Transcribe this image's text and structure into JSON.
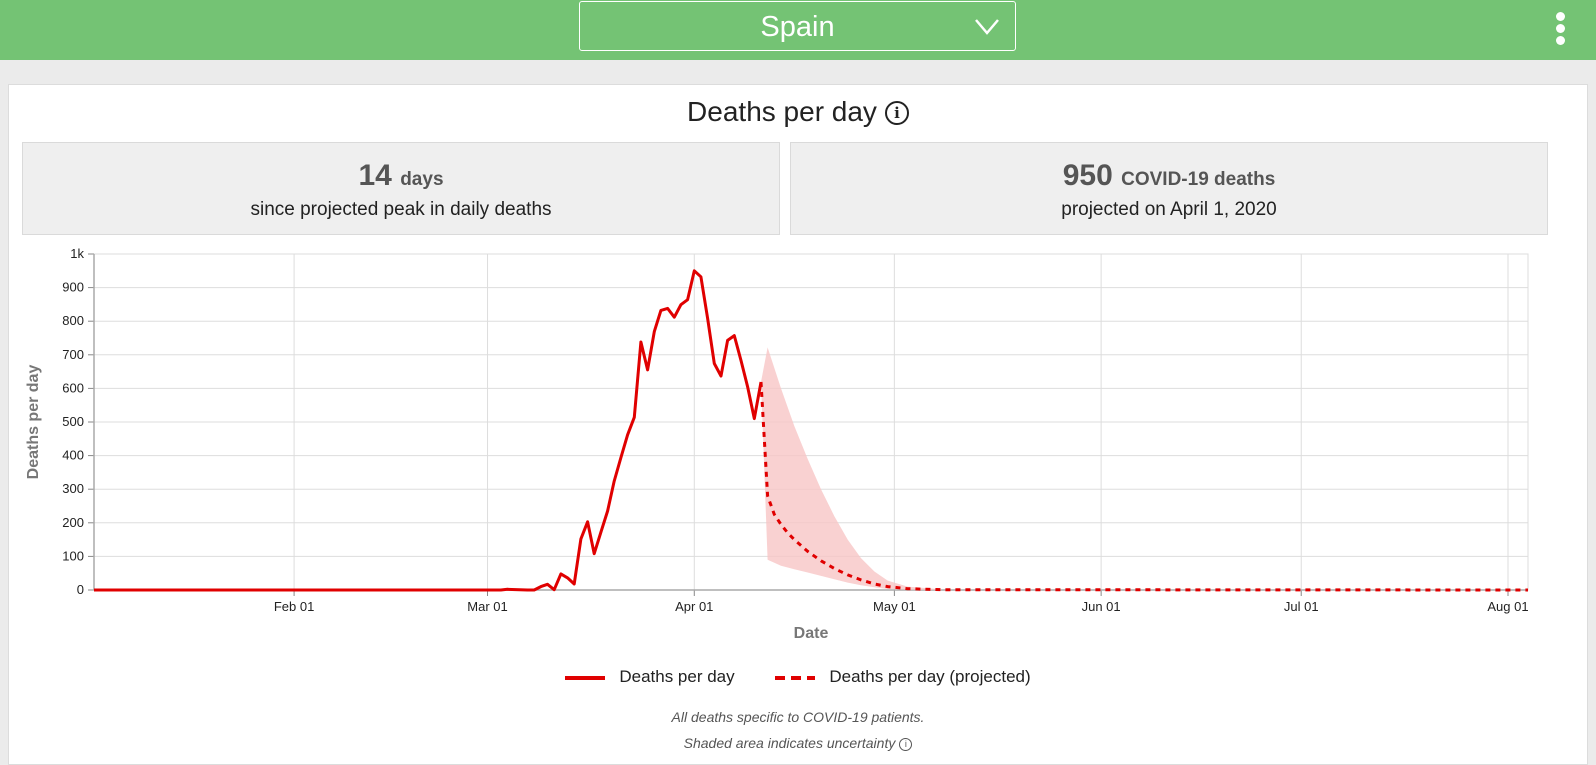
{
  "header": {
    "country": "Spain",
    "menu_icon": "kebab-menu-icon",
    "background": "#74c374"
  },
  "title": "Deaths per day",
  "stats": [
    {
      "value": "14",
      "unit": "days",
      "caption": "since projected peak in daily deaths"
    },
    {
      "value": "950",
      "unit": "COVID-19 deaths",
      "caption": "projected on April 1, 2020"
    }
  ],
  "notes": {
    "line1": "All deaths specific to COVID-19 patients.",
    "line2": "Shaded area indicates uncertainty"
  },
  "chart_data": {
    "type": "line",
    "title": "Deaths per day",
    "xlabel": "Date",
    "ylabel": "Deaths per day",
    "ylim": [
      0,
      1000
    ],
    "xlim": [
      "2020-01-02",
      "2020-08-04"
    ],
    "y_ticks": [
      0,
      100,
      200,
      300,
      400,
      500,
      600,
      700,
      800,
      900,
      1000
    ],
    "y_tick_labels": [
      "0",
      "100",
      "200",
      "300",
      "400",
      "500",
      "600",
      "700",
      "800",
      "900",
      "1k"
    ],
    "x_ticks": [
      {
        "date": "2020-02-01",
        "label": "Feb 01"
      },
      {
        "date": "2020-03-01",
        "label": "Mar 01"
      },
      {
        "date": "2020-04-01",
        "label": "Apr 01"
      },
      {
        "date": "2020-05-01",
        "label": "May 01"
      },
      {
        "date": "2020-06-01",
        "label": "Jun 01"
      },
      {
        "date": "2020-07-01",
        "label": "Jul 01"
      },
      {
        "date": "2020-08-01",
        "label": "Aug 01"
      }
    ],
    "grid": true,
    "legend_position": "bottom",
    "colors": {
      "line": "#e00000",
      "band": "#f7c6c6"
    },
    "series": [
      {
        "name": "Deaths per day",
        "style": "solid",
        "points": [
          {
            "x": "2020-01-02",
            "y": 0
          },
          {
            "x": "2020-03-03",
            "y": 0
          },
          {
            "x": "2020-03-04",
            "y": 2
          },
          {
            "x": "2020-03-07",
            "y": 0
          },
          {
            "x": "2020-03-08",
            "y": 0
          },
          {
            "x": "2020-03-09",
            "y": 10
          },
          {
            "x": "2020-03-10",
            "y": 17
          },
          {
            "x": "2020-03-11",
            "y": 1
          },
          {
            "x": "2020-03-12",
            "y": 48
          },
          {
            "x": "2020-03-13",
            "y": 36
          },
          {
            "x": "2020-03-14",
            "y": 18
          },
          {
            "x": "2020-03-15",
            "y": 152
          },
          {
            "x": "2020-03-16",
            "y": 203
          },
          {
            "x": "2020-03-17",
            "y": 108
          },
          {
            "x": "2020-03-18",
            "y": 172
          },
          {
            "x": "2020-03-19",
            "y": 235
          },
          {
            "x": "2020-03-20",
            "y": 324
          },
          {
            "x": "2020-03-21",
            "y": 394
          },
          {
            "x": "2020-03-22",
            "y": 462
          },
          {
            "x": "2020-03-23",
            "y": 514
          },
          {
            "x": "2020-03-24",
            "y": 738
          },
          {
            "x": "2020-03-25",
            "y": 655
          },
          {
            "x": "2020-03-26",
            "y": 769
          },
          {
            "x": "2020-03-27",
            "y": 832
          },
          {
            "x": "2020-03-28",
            "y": 838
          },
          {
            "x": "2020-03-29",
            "y": 812
          },
          {
            "x": "2020-03-30",
            "y": 849
          },
          {
            "x": "2020-03-31",
            "y": 864
          },
          {
            "x": "2020-04-01",
            "y": 950
          },
          {
            "x": "2020-04-02",
            "y": 932
          },
          {
            "x": "2020-04-03",
            "y": 809
          },
          {
            "x": "2020-04-04",
            "y": 674
          },
          {
            "x": "2020-04-05",
            "y": 637
          },
          {
            "x": "2020-04-06",
            "y": 743
          },
          {
            "x": "2020-04-07",
            "y": 757
          },
          {
            "x": "2020-04-08",
            "y": 683
          },
          {
            "x": "2020-04-09",
            "y": 605
          },
          {
            "x": "2020-04-10",
            "y": 510
          },
          {
            "x": "2020-04-11",
            "y": 619
          }
        ]
      },
      {
        "name": "Deaths per day (projected)",
        "style": "dashed",
        "points": [
          {
            "x": "2020-04-11",
            "y": 619
          },
          {
            "x": "2020-04-12",
            "y": 280
          },
          {
            "x": "2020-04-13",
            "y": 225
          },
          {
            "x": "2020-04-14",
            "y": 195
          },
          {
            "x": "2020-04-15",
            "y": 170
          },
          {
            "x": "2020-04-16",
            "y": 150
          },
          {
            "x": "2020-04-18",
            "y": 115
          },
          {
            "x": "2020-04-20",
            "y": 87
          },
          {
            "x": "2020-04-22",
            "y": 64
          },
          {
            "x": "2020-04-24",
            "y": 45
          },
          {
            "x": "2020-04-26",
            "y": 30
          },
          {
            "x": "2020-04-28",
            "y": 18
          },
          {
            "x": "2020-04-30",
            "y": 10
          },
          {
            "x": "2020-05-03",
            "y": 4
          },
          {
            "x": "2020-05-08",
            "y": 1
          },
          {
            "x": "2020-08-04",
            "y": 0
          }
        ]
      }
    ],
    "uncertainty_band": [
      {
        "x": "2020-04-11",
        "lower": 619,
        "upper": 619
      },
      {
        "x": "2020-04-12",
        "lower": 90,
        "upper": 722
      },
      {
        "x": "2020-04-14",
        "lower": 72,
        "upper": 600
      },
      {
        "x": "2020-04-16",
        "lower": 62,
        "upper": 488
      },
      {
        "x": "2020-04-18",
        "lower": 52,
        "upper": 390
      },
      {
        "x": "2020-04-20",
        "lower": 42,
        "upper": 300
      },
      {
        "x": "2020-04-22",
        "lower": 32,
        "upper": 220
      },
      {
        "x": "2020-04-24",
        "lower": 22,
        "upper": 150
      },
      {
        "x": "2020-04-26",
        "lower": 14,
        "upper": 95
      },
      {
        "x": "2020-04-28",
        "lower": 8,
        "upper": 55
      },
      {
        "x": "2020-04-30",
        "lower": 3,
        "upper": 28
      },
      {
        "x": "2020-05-03",
        "lower": 1,
        "upper": 10
      },
      {
        "x": "2020-05-08",
        "lower": 0,
        "upper": 2
      }
    ]
  }
}
